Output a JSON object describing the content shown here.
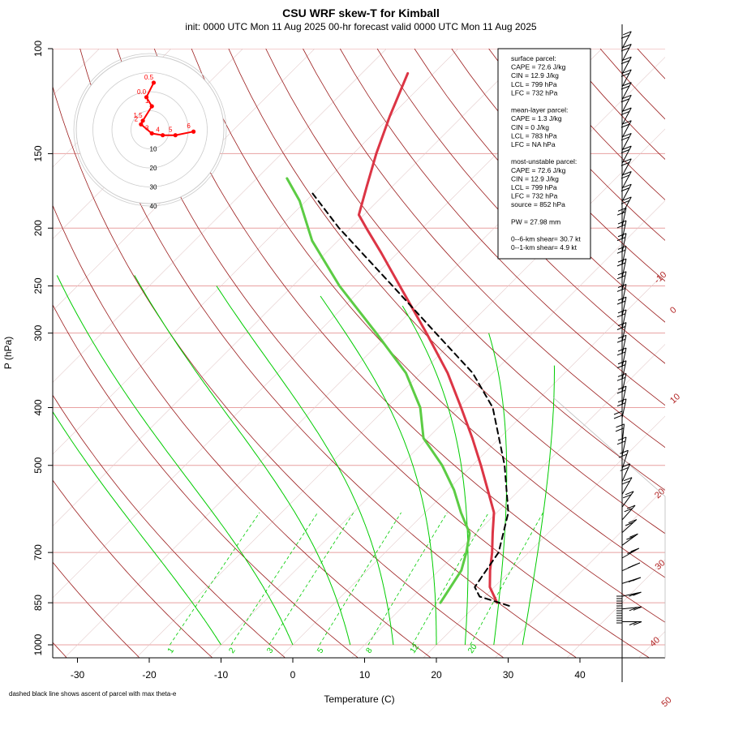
{
  "title": "CSU WRF skew-T for Kimball",
  "subtitle": "init: 0000 UTC Mon 11 Aug 2025    00-hr forecast valid 0000 UTC Mon 11 Aug 2025",
  "footnote": "dashed black line shows ascent of parcel with max theta-e",
  "stats": {
    "lines": [
      "surface parcel:",
      "CAPE = 72.6 J/kg",
      "CIN = 12.9 J/kg",
      "LCL = 799 hPa",
      "LFC = 732 hPa",
      "",
      "mean-layer parcel:",
      "CAPE = 1.3 J/kg",
      "CIN = 0 J/kg",
      "LCL = 783 hPa",
      "LFC = NA hPa",
      "",
      "most-unstable parcel:",
      "CAPE = 72.6 J/kg",
      "CIN = 12.9 J/kg",
      "LCL = 799 hPa",
      "LFC = 732 hPa",
      "source = 852 hPa",
      "",
      "PW =  27.98 mm",
      "",
      "0--6-km shear= 30.7 kt",
      "0--1-km shear= 4.9 kt"
    ]
  },
  "colors": {
    "isotherm": "#b22222",
    "isobar": "#e8a0a0",
    "dry_adiabat": "#9b1c1c",
    "mixing_ratio": "#00cc00",
    "temperature": "#dc3545",
    "dewpoint": "#5ccc44",
    "parcel": "#000000",
    "hodograph": "#ff0000"
  },
  "chart_data": {
    "type": "skew-t",
    "xlabel": "Temperature (C)",
    "ylabel": "P (hPa)",
    "xlim": [
      -33,
      45
    ],
    "ylim": [
      1000,
      100
    ],
    "log_y": true,
    "x_ticks": [
      -30,
      -20,
      -10,
      0,
      10,
      20,
      30,
      40
    ],
    "p_ticks": [
      1000,
      850,
      700,
      500,
      400,
      300,
      250,
      200,
      150,
      100
    ],
    "isotherm_labels": [
      "-10",
      "0",
      "10",
      "20",
      "30",
      "40",
      "50"
    ],
    "mixing_ratio_labels": [
      "1",
      "2",
      "3",
      "5",
      "8",
      "12",
      "20"
    ],
    "temperature": [
      {
        "p": 850,
        "t": 22.6
      },
      {
        "p": 800,
        "t": 19.4
      },
      {
        "p": 750,
        "t": 17.1
      },
      {
        "p": 700,
        "t": 14.9
      },
      {
        "p": 650,
        "t": 12.3
      },
      {
        "p": 600,
        "t": 9.6
      },
      {
        "p": 550,
        "t": 5.6
      },
      {
        "p": 500,
        "t": 1.2
      },
      {
        "p": 450,
        "t": -3.8
      },
      {
        "p": 400,
        "t": -9.6
      },
      {
        "p": 350,
        "t": -16.3
      },
      {
        "p": 300,
        "t": -24.8
      },
      {
        "p": 250,
        "t": -35.1
      },
      {
        "p": 220,
        "t": -42.3
      },
      {
        "p": 200,
        "t": -47.8
      },
      {
        "p": 190,
        "t": -50.7
      },
      {
        "p": 170,
        "t": -53.6
      },
      {
        "p": 150,
        "t": -56.8
      },
      {
        "p": 130,
        "t": -60.1
      },
      {
        "p": 110,
        "t": -63.6
      }
    ],
    "dewpoint": [
      {
        "p": 850,
        "t": 14.7
      },
      {
        "p": 830,
        "t": 14.4
      },
      {
        "p": 750,
        "t": 13.1
      },
      {
        "p": 700,
        "t": 11.3
      },
      {
        "p": 650,
        "t": 9.1
      },
      {
        "p": 600,
        "t": 5.0
      },
      {
        "p": 550,
        "t": 0.9
      },
      {
        "p": 500,
        "t": -4.2
      },
      {
        "p": 450,
        "t": -10.6
      },
      {
        "p": 400,
        "t": -15.3
      },
      {
        "p": 350,
        "t": -22.1
      },
      {
        "p": 300,
        "t": -31.8
      },
      {
        "p": 250,
        "t": -43.5
      },
      {
        "p": 210,
        "t": -53.6
      },
      {
        "p": 180,
        "t": -60.9
      },
      {
        "p": 165,
        "t": -65.8
      }
    ],
    "parcel": [
      {
        "p": 860,
        "t": 24.7
      },
      {
        "p": 830,
        "t": 19.3
      },
      {
        "p": 800,
        "t": 17.3
      },
      {
        "p": 700,
        "t": 15.8
      },
      {
        "p": 600,
        "t": 11.6
      },
      {
        "p": 500,
        "t": 4.5
      },
      {
        "p": 400,
        "t": -5.2
      },
      {
        "p": 350,
        "t": -12.8
      },
      {
        "p": 300,
        "t": -23.5
      },
      {
        "p": 250,
        "t": -36.1
      },
      {
        "p": 200,
        "t": -51.6
      },
      {
        "p": 175,
        "t": -60.1
      }
    ],
    "hodograph": {
      "ring_labels": [
        "10",
        "20",
        "30",
        "40"
      ],
      "points": [
        {
          "label": "6",
          "u": 24,
          "v": -1
        },
        {
          "label": "5",
          "u": 14,
          "v": -3
        },
        {
          "label": "4",
          "u": 7,
          "v": -3
        },
        {
          "label": "3",
          "u": 1,
          "v": -2
        },
        {
          "label": "2",
          "u": -5,
          "v": 3
        },
        {
          "label": "1.5",
          "u": -4,
          "v": 5
        },
        {
          "label": "1",
          "u": 1,
          "v": 13
        },
        {
          "label": "0.0",
          "u": -2,
          "v": 18
        },
        {
          "label": "0.5",
          "u": 2,
          "v": 26
        }
      ]
    }
  }
}
